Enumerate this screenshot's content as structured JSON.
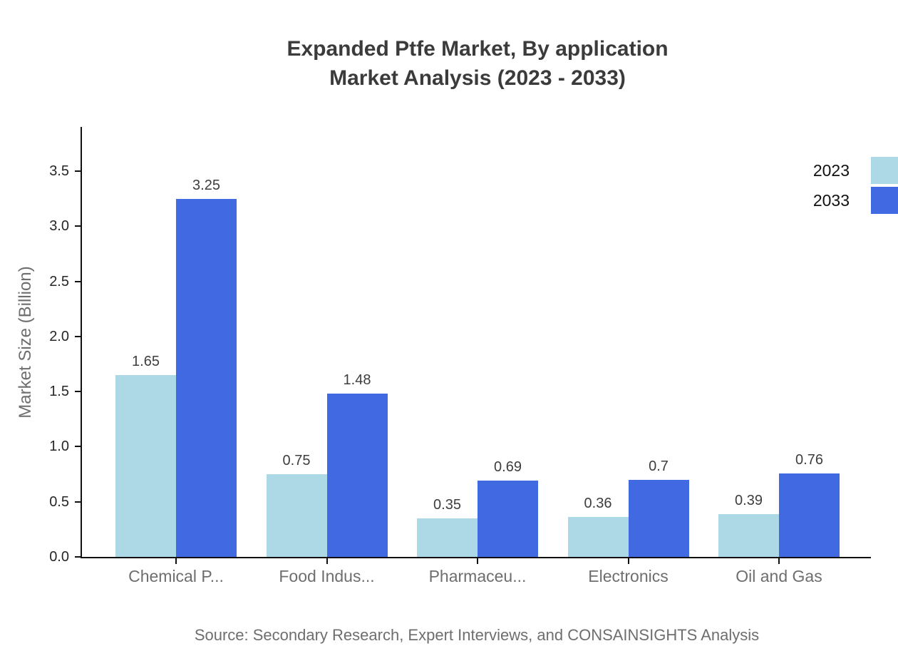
{
  "title": {
    "line1": "Expanded Ptfe Market, By application",
    "line2": "Market Analysis (2023 - 2033)"
  },
  "source": "Source: Secondary Research, Expert Interviews, and CONSAINSIGHTS Analysis",
  "chart_data": {
    "type": "bar",
    "title": "Expanded Ptfe Market, By application Market Analysis (2023 - 2033)",
    "categories": [
      "Chemical P...",
      "Food Indus...",
      "Pharmaceu...",
      "Electronics",
      "Oil and Gas"
    ],
    "series": [
      {
        "name": "2023",
        "color": "#add8e6",
        "values": [
          1.65,
          0.75,
          0.35,
          0.36,
          0.39
        ]
      },
      {
        "name": "2033",
        "color": "#4169e1",
        "values": [
          3.25,
          1.48,
          0.69,
          0.7,
          0.76
        ]
      }
    ],
    "xlabel": "",
    "ylabel": "Market Size (Billion)",
    "ylim": [
      0,
      3.9
    ],
    "yticks": [
      0,
      0.5,
      1,
      1.5,
      2,
      2.5,
      3,
      3.5
    ],
    "grid": false,
    "legend_position": "top-right",
    "colors": {
      "axis": "#111111",
      "tick_label": "#262626",
      "category_label": "#6e6e6e",
      "value_label": "#3d3d3d"
    }
  }
}
